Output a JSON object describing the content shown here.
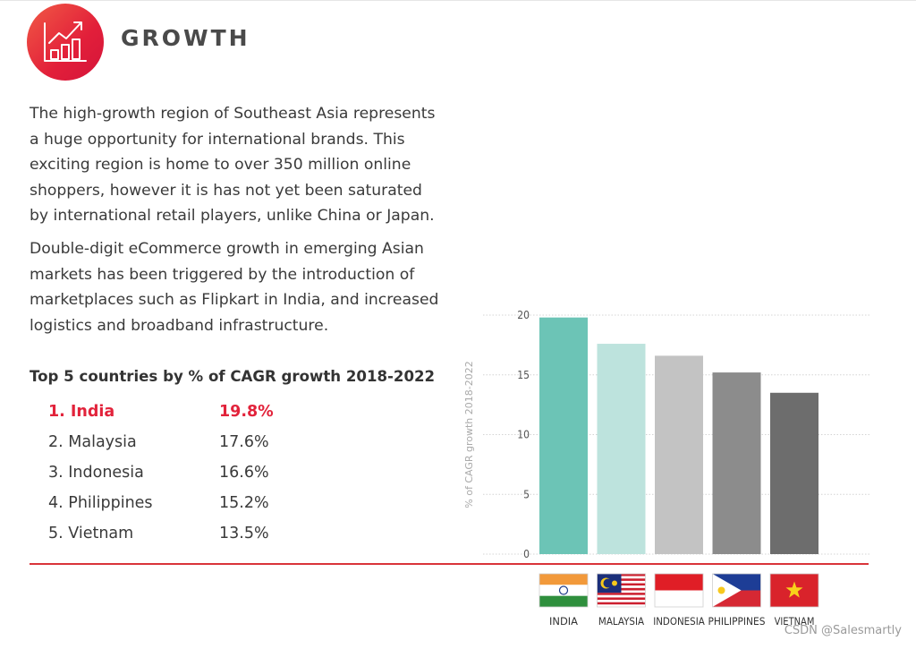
{
  "header": {
    "title": "GROWTH",
    "icon": "growth-chart-icon"
  },
  "body": {
    "paragraph1": "The high-growth region of Southeast Asia represents a huge opportunity for international brands. This exciting region is home to over 350 million online shoppers, however it is has not yet been saturated by international retail players, unlike China or Japan.",
    "paragraph2": "Double-digit eCommerce growth in emerging Asian markets has been triggered by the introduction of marketplaces such as Flipkart in India, and increased logistics and broadband infrastructure."
  },
  "list": {
    "title": "Top 5 countries by % of CAGR growth 2018-2022",
    "items": [
      {
        "label": "1. India",
        "value": "19.8%"
      },
      {
        "label": "2. Malaysia",
        "value": "17.6%"
      },
      {
        "label": "3. Indonesia",
        "value": "16.6%"
      },
      {
        "label": "4. Philippines",
        "value": "15.2%"
      },
      {
        "label": "5. Vietnam",
        "value": "13.5%"
      }
    ]
  },
  "chart_data": {
    "type": "bar",
    "categories": [
      "INDIA",
      "MALAYSIA",
      "INDONESIA",
      "PHILIPPINES",
      "VIETNAM"
    ],
    "values": [
      19.8,
      17.6,
      16.6,
      15.2,
      13.5
    ],
    "ylabel": "% of CAGR growth 2018-2022",
    "ylim": [
      0,
      20
    ],
    "yticks": [
      "0",
      "5",
      "10",
      "15",
      "20"
    ],
    "grid": true,
    "bar_colors": [
      "#6cc4b6",
      "#bde3dd",
      "#c3c3c3",
      "#8c8c8c",
      "#6d6d6d"
    ],
    "flags": [
      "india-flag-icon",
      "malaysia-flag-icon",
      "indonesia-flag-icon",
      "philippines-flag-icon",
      "vietnam-flag-icon"
    ]
  },
  "colors": {
    "accent": "#e2233b",
    "text": "#3a3a3a",
    "rule": "#d9343a"
  },
  "watermark": "CSDN @Salesmartly"
}
